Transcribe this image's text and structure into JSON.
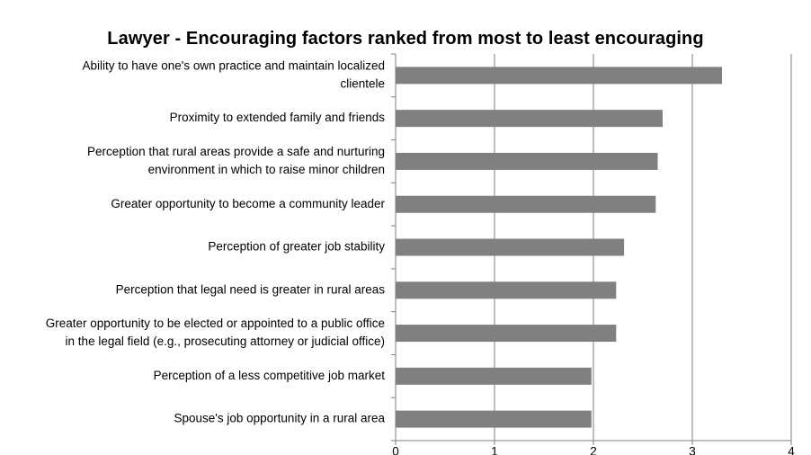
{
  "chart_data": {
    "type": "bar",
    "orientation": "horizontal",
    "title": "Lawyer - Encouraging factors ranked from most to least encouraging",
    "xlabel": "",
    "ylabel": "",
    "xlim": [
      0,
      4
    ],
    "x_ticks": [
      "0",
      "1",
      "2",
      "3",
      "4"
    ],
    "grid": "vertical major gridlines",
    "legend": "none",
    "bar_color": "#808080",
    "categories": [
      [
        "Ability to have one's own practice and maintain localized",
        "clientele"
      ],
      [
        "Proximity to extended family and friends"
      ],
      [
        "Perception that rural areas provide a safe and nurturing",
        "environment in which to raise minor children"
      ],
      [
        "Greater opportunity to become a community leader"
      ],
      [
        "Perception of greater job stability"
      ],
      [
        "Perception that legal need is greater in rural areas"
      ],
      [
        "Greater opportunity to be elected or appointed to a public office",
        "in the legal field (e.g., prosecuting attorney or judicial office)"
      ],
      [
        "Perception of a less competitive job market"
      ],
      [
        "Spouse's job opportunity in a rural area"
      ]
    ],
    "values": [
      3.3,
      2.7,
      2.65,
      2.63,
      2.31,
      2.23,
      2.23,
      1.98,
      1.98
    ]
  }
}
